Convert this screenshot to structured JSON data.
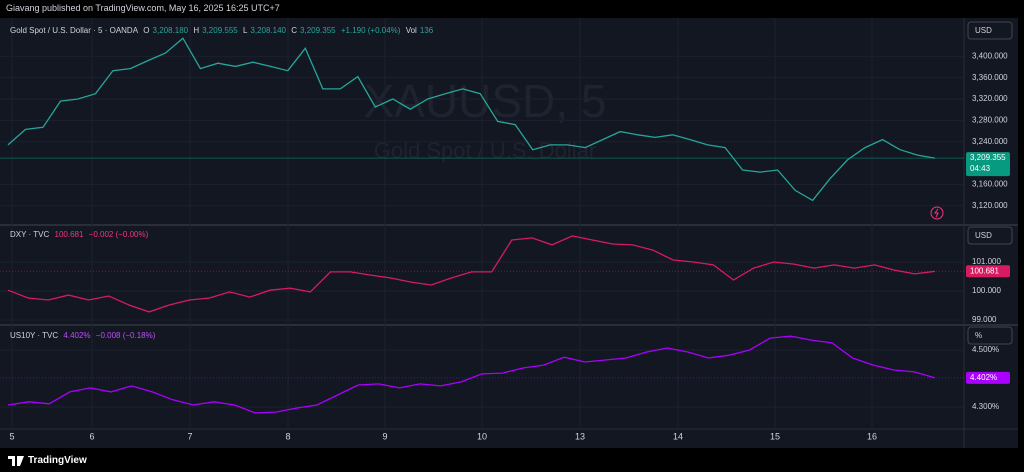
{
  "header": {
    "published": "Giavang published on TradingView.com, May 16, 2025 16:25 UTC+7"
  },
  "watermark": {
    "symbol": "XAUUSD, 5",
    "description": "Gold Spot / U.S. Dollar"
  },
  "chart_data": [
    {
      "type": "line",
      "title": "Gold Spot / U.S. Dollar · 5 · OANDA",
      "legend": {
        "o": "O",
        "open": "3,208.180",
        "h": "H",
        "high": "3,209.555",
        "l": "L",
        "low": "3,208.140",
        "c": "C",
        "close": "3,209.355",
        "change": "+1.190 (+0.04%)",
        "vol_label": "Vol",
        "vol": "136"
      },
      "currency": "USD",
      "color": "#26a69a",
      "label_color": "#089981",
      "values": [
        3234,
        3263,
        3267,
        3316,
        3320,
        3330,
        3373,
        3377,
        3392,
        3406,
        3434,
        3377,
        3387,
        3381,
        3389,
        3381,
        3373,
        3415,
        3339,
        3339,
        3362,
        3305,
        3320,
        3301,
        3320,
        3330,
        3339,
        3330,
        3278,
        3272,
        3225,
        3234,
        3234,
        3229,
        3244,
        3259,
        3253,
        3248,
        3253,
        3244,
        3234,
        3229,
        3187,
        3183,
        3187,
        3149,
        3130,
        3171,
        3206,
        3229,
        3244,
        3225,
        3215,
        3209.355
      ],
      "ylim": [
        3084,
        3468
      ],
      "yticks": [
        {
          "value": 3120,
          "label": "3,120.000"
        },
        {
          "value": 3160,
          "label": "3,160.000"
        },
        {
          "value": 3240,
          "label": "3,240.000"
        },
        {
          "value": 3280,
          "label": "3,280.000"
        },
        {
          "value": 3320,
          "label": "3,320.000"
        },
        {
          "value": 3360,
          "label": "3,360.000"
        },
        {
          "value": 3400,
          "label": "3,400.000"
        }
      ],
      "last": {
        "value": 3209.355,
        "label": "3,209.355"
      },
      "countdown": "04:43",
      "grid": true
    },
    {
      "type": "line",
      "title": "DXY · TVC",
      "legend": {
        "close": "100.681",
        "change": "−0.002 (−0.00%)"
      },
      "currency": "USD",
      "color": "#d81b60",
      "label_color": "#d81b60",
      "values": [
        100.03,
        99.76,
        99.69,
        99.86,
        99.69,
        99.83,
        99.52,
        99.28,
        99.52,
        99.69,
        99.76,
        99.97,
        99.79,
        100.03,
        100.1,
        99.97,
        100.66,
        100.66,
        100.55,
        100.45,
        100.31,
        100.21,
        100.45,
        100.66,
        100.66,
        101.76,
        101.83,
        101.59,
        101.9,
        101.76,
        101.62,
        101.59,
        101.41,
        101.07,
        101.0,
        100.9,
        100.38,
        100.79,
        101.0,
        100.93,
        100.79,
        100.9,
        100.79,
        100.9,
        100.72,
        100.59,
        100.681
      ],
      "ylim": [
        98.83,
        102.276
      ],
      "yticks": [
        {
          "value": 99,
          "label": "99.000"
        },
        {
          "value": 100,
          "label": "100.000"
        },
        {
          "value": 101,
          "label": "101.000"
        }
      ],
      "last": {
        "value": 100.681,
        "label": "100.681"
      },
      "grid": true
    },
    {
      "type": "line",
      "title": "US10Y · TVC",
      "legend": {
        "close": "4.402%",
        "change": "−0.008 (−0.18%)"
      },
      "currency": "%",
      "color": "#aa00ff",
      "label_color": "#aa00ff",
      "values": [
        4.307,
        4.318,
        4.311,
        4.353,
        4.367,
        4.353,
        4.374,
        4.353,
        4.325,
        4.307,
        4.318,
        4.307,
        4.279,
        4.282,
        4.296,
        4.307,
        4.342,
        4.377,
        4.381,
        4.367,
        4.381,
        4.374,
        4.388,
        4.416,
        4.419,
        4.437,
        4.447,
        4.475,
        4.458,
        4.465,
        4.472,
        4.493,
        4.507,
        4.493,
        4.472,
        4.482,
        4.5,
        4.542,
        4.549,
        4.535,
        4.525,
        4.472,
        4.447,
        4.43,
        4.423,
        4.402
      ],
      "ylim": [
        4.226,
        4.588
      ],
      "yticks": [
        {
          "value": 4.3,
          "label": "4.300%"
        },
        {
          "value": 4.5,
          "label": "4.500%"
        }
      ],
      "last": {
        "value": 4.402,
        "label": "4.402%"
      },
      "grid": true
    }
  ],
  "x_axis": {
    "labels": [
      "5",
      "6",
      "7",
      "8",
      "9",
      "10",
      "13",
      "14",
      "15",
      "16"
    ]
  },
  "footer": {
    "brand": "TradingView"
  }
}
